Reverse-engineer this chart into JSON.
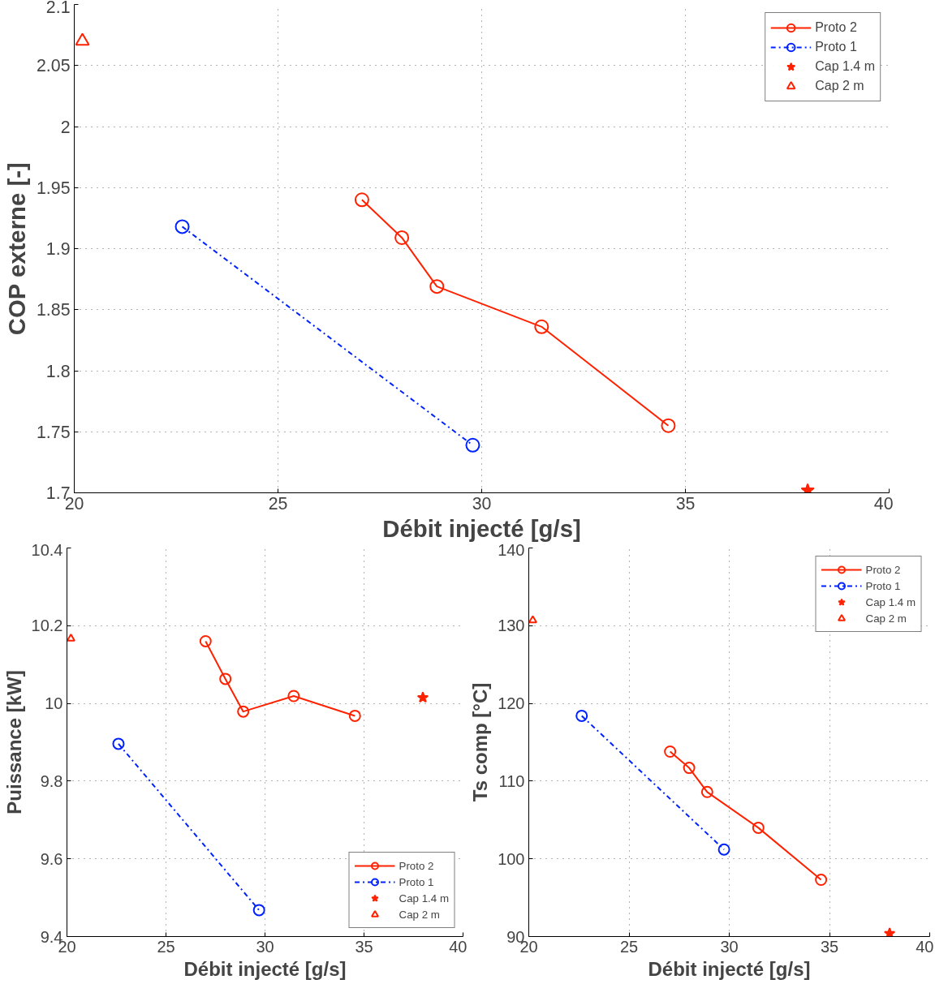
{
  "chart_data": [
    {
      "type": "line",
      "xlabel": "Débit injecté [g/s]",
      "ylabel": "COP externe [-]",
      "xlim": [
        20,
        40
      ],
      "ylim": [
        1.7,
        2.1
      ],
      "xticks": [
        20,
        25,
        30,
        35,
        40
      ],
      "yticks": [
        1.7,
        1.75,
        1.8,
        1.85,
        1.9,
        1.95,
        2,
        2.05,
        2.1
      ],
      "grid": true,
      "legend": "top right",
      "series": [
        {
          "name": "Proto 2",
          "color": "#ff2200",
          "marker": "circle",
          "line_style": "solid",
          "x": [
            27.06,
            28.04,
            28.9,
            31.47,
            34.58
          ],
          "values": [
            1.94,
            1.909,
            1.869,
            1.836,
            1.755
          ]
        },
        {
          "name": "Proto 1",
          "color": "#0022ff",
          "marker": "circle",
          "line_style": "dashdot",
          "x": [
            22.65,
            29.78
          ],
          "values": [
            1.918,
            1.739
          ]
        },
        {
          "name": "Cap 1.4 m",
          "type": "scatter",
          "color": "#ff2200",
          "marker": "star",
          "x": [
            38.0
          ],
          "values": [
            1.702
          ]
        },
        {
          "name": "Cap 2 m",
          "type": "scatter",
          "color": "#ff2200",
          "marker": "triangle",
          "x": [
            20.2
          ],
          "values": [
            2.07
          ]
        }
      ]
    },
    {
      "type": "line",
      "xlabel": "Débit injecté [g/s]",
      "ylabel": "Puissance [kW]",
      "xlim": [
        20,
        40
      ],
      "ylim": [
        9.4,
        10.4
      ],
      "xticks": [
        20,
        25,
        30,
        35,
        40
      ],
      "yticks": [
        9.4,
        9.6,
        9.8,
        10,
        10.2,
        10.4
      ],
      "grid": true,
      "legend": "bottom right",
      "series": [
        {
          "name": "Proto 2",
          "color": "#ff2200",
          "marker": "circle",
          "line_style": "solid",
          "x": [
            27.0,
            28.0,
            28.9,
            31.45,
            34.54
          ],
          "values": [
            10.16,
            10.063,
            9.979,
            10.019,
            9.968
          ]
        },
        {
          "name": "Proto 1",
          "color": "#0022ff",
          "marker": "circle",
          "line_style": "dashdot",
          "x": [
            22.6,
            29.7
          ],
          "values": [
            9.896,
            9.468
          ]
        },
        {
          "name": "Cap 1.4 m",
          "type": "scatter",
          "color": "#ff2200",
          "marker": "star",
          "x": [
            37.97
          ],
          "values": [
            10.015
          ]
        },
        {
          "name": "Cap 2 m",
          "type": "scatter",
          "color": "#ff2200",
          "marker": "triangle",
          "x": [
            20.2
          ],
          "values": [
            10.167
          ]
        }
      ]
    },
    {
      "type": "line",
      "xlabel": "Débit injecté [g/s]",
      "ylabel": "Ts comp [°C]",
      "xlim": [
        20,
        40
      ],
      "ylim": [
        90,
        140
      ],
      "xticks": [
        20,
        25,
        30,
        35,
        40
      ],
      "yticks": [
        90,
        100,
        110,
        120,
        130,
        140
      ],
      "grid": true,
      "legend": "top right",
      "series": [
        {
          "name": "Proto 2",
          "color": "#ff2200",
          "marker": "circle",
          "line_style": "solid",
          "x": [
            27.05,
            28.0,
            28.9,
            31.45,
            34.58
          ],
          "values": [
            113.8,
            111.7,
            108.6,
            104.0,
            97.3
          ]
        },
        {
          "name": "Proto 1",
          "color": "#0022ff",
          "marker": "circle",
          "line_style": "dashdot",
          "x": [
            22.64,
            29.74
          ],
          "values": [
            118.4,
            101.2
          ]
        },
        {
          "name": "Cap 1.4 m",
          "type": "scatter",
          "color": "#ff2200",
          "marker": "star",
          "x": [
            38.0
          ],
          "values": [
            90.4
          ]
        },
        {
          "name": "Cap 2 m",
          "type": "scatter",
          "color": "#ff2200",
          "marker": "triangle",
          "x": [
            20.2
          ],
          "values": [
            130.7
          ]
        }
      ]
    }
  ]
}
